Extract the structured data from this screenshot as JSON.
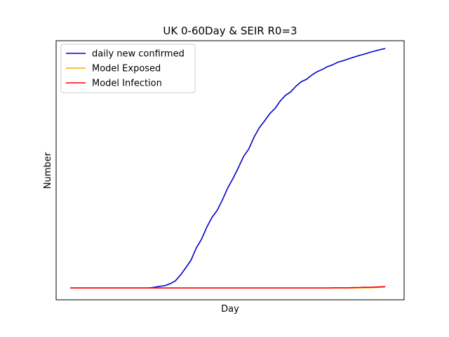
{
  "chart_data": {
    "type": "line",
    "title": "UK 0-60Day & SEIR R0=3",
    "xlabel": "Day",
    "ylabel": "Number",
    "x": [
      0,
      1,
      2,
      3,
      4,
      5,
      6,
      7,
      8,
      9,
      10,
      11,
      12,
      13,
      14,
      15,
      16,
      17,
      18,
      19,
      20,
      21,
      22,
      23,
      24,
      25,
      26,
      27,
      28,
      29,
      30,
      31,
      32,
      33,
      34,
      35,
      36,
      37,
      38,
      39,
      40,
      41,
      42,
      43,
      44,
      45,
      46,
      47,
      48,
      49,
      50,
      51,
      52,
      53,
      54,
      55,
      56,
      57,
      58,
      59,
      60
    ],
    "xlim": [
      -2.7,
      63.6
    ],
    "ylim": [
      -0.05,
      1.05
    ],
    "xticks_visible": false,
    "yticks_visible": false,
    "grid": false,
    "legend": {
      "location": "upper left"
    },
    "series": [
      {
        "name": "daily new confirmed",
        "color": "#0000cc",
        "values": [
          0.0,
          0.0,
          0.0,
          0.0,
          0.0,
          0.0,
          0.0,
          0.0,
          0.0,
          0.0,
          0.0,
          0.0,
          0.0,
          0.0,
          0.0,
          0.0,
          0.003,
          0.007,
          0.01,
          0.018,
          0.03,
          0.055,
          0.086,
          0.118,
          0.17,
          0.207,
          0.258,
          0.3,
          0.33,
          0.375,
          0.425,
          0.465,
          0.51,
          0.558,
          0.59,
          0.64,
          0.68,
          0.709,
          0.74,
          0.762,
          0.794,
          0.818,
          0.833,
          0.857,
          0.876,
          0.886,
          0.904,
          0.918,
          0.928,
          0.94,
          0.948,
          0.959,
          0.965,
          0.973,
          0.98,
          0.987,
          0.993,
          1.0,
          1.006,
          1.012,
          1.017
        ]
      },
      {
        "name": "Model Exposed",
        "color": "#ffa500",
        "values": [
          0.0,
          0.0,
          0.0,
          0.0,
          0.0,
          0.0,
          0.0,
          0.0,
          0.0,
          0.0,
          0.0,
          0.0,
          0.0,
          0.0,
          0.0,
          0.0,
          0.0,
          0.0,
          0.0,
          0.0,
          0.0,
          0.0,
          0.0,
          0.0,
          0.0,
          0.0,
          0.0,
          0.0,
          0.0,
          0.0,
          0.0,
          0.0,
          0.0,
          0.0,
          0.0,
          0.0,
          0.0,
          0.0,
          0.0,
          0.0,
          0.0,
          0.0,
          0.0,
          0.0,
          0.0,
          0.0,
          0.0,
          0.0,
          0.0,
          0.0,
          0.0,
          0.0,
          0.0,
          0.0,
          0.0,
          0.001,
          0.001,
          0.001,
          0.002,
          0.003,
          0.004
        ]
      },
      {
        "name": "Model Infection",
        "color": "#ff0000",
        "values": [
          0.0,
          0.0,
          0.0,
          0.0,
          0.0,
          0.0,
          0.0,
          0.0,
          0.0,
          0.0,
          0.0,
          0.0,
          0.0,
          0.0,
          0.0,
          0.0,
          0.0,
          0.0,
          0.0,
          0.0,
          0.0,
          0.0,
          0.0,
          0.0,
          0.0,
          0.0,
          0.0,
          0.0,
          0.0,
          0.0,
          0.0,
          0.0,
          0.0,
          0.0,
          0.0,
          0.0,
          0.0,
          0.0,
          0.0,
          0.0,
          0.0,
          0.0,
          0.0,
          0.0,
          0.0,
          0.0,
          0.0,
          0.0,
          0.0,
          0.0,
          0.001,
          0.001,
          0.001,
          0.001,
          0.002,
          0.002,
          0.003,
          0.003,
          0.004,
          0.005,
          0.006
        ]
      }
    ]
  }
}
